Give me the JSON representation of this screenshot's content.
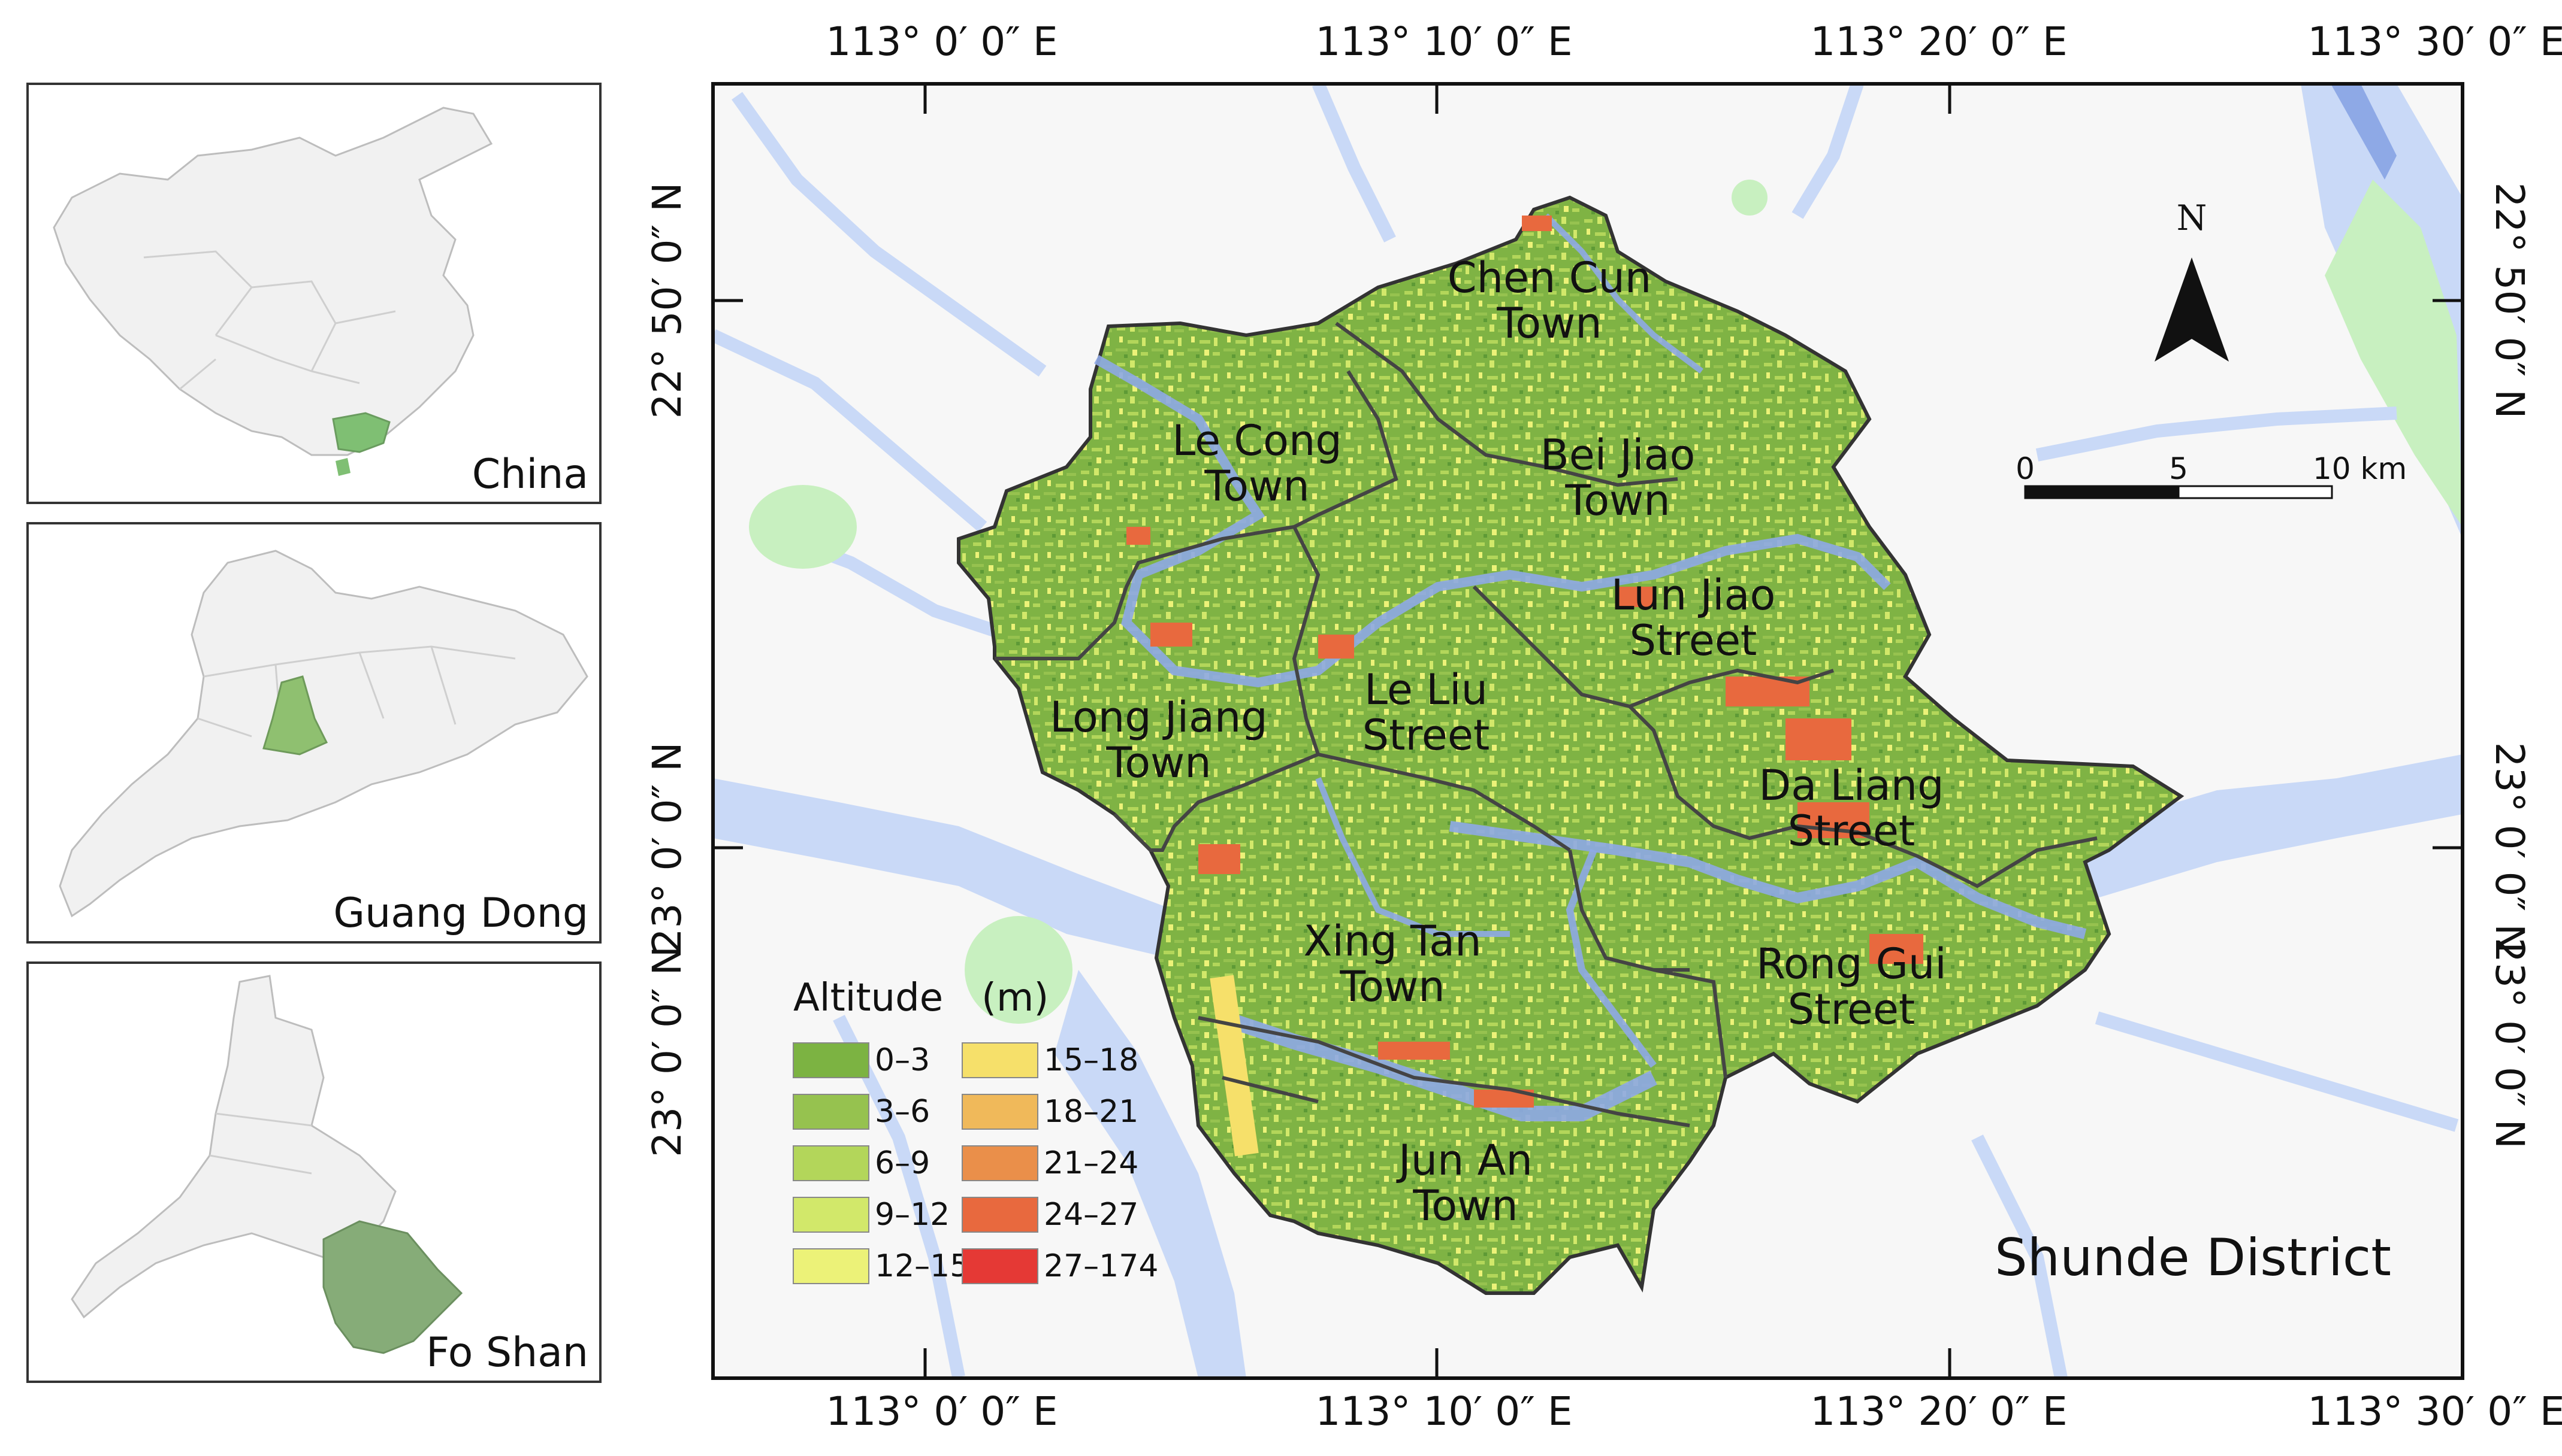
{
  "map": {
    "district_name": "Shunde District",
    "north_label": "N",
    "top_lon_labels": [
      "113° 0′ 0″ E",
      "113° 10′ 0″ E",
      "113° 20′ 0″ E",
      "113° 30′ 0″ E"
    ],
    "bottom_lon_labels": [
      "113° 0′ 0″ E",
      "113° 10′ 0″ E",
      "113° 20′ 0″ E",
      "113° 30′ 0″ E"
    ],
    "left_lat_labels": [
      "22° 50′ 0″ N",
      "23° 0′ 0″ N",
      "23° 0′ 0″ N"
    ],
    "right_lat_labels": [
      "22° 50′ 0″ N",
      "23° 0′ 0″ N",
      "23° 0′ 0″ N"
    ],
    "scale_bar": {
      "labels": [
        "0",
        "5",
        "10 km"
      ]
    },
    "colors": {
      "river": "#c9d9f7",
      "river_main": "#8ea9e6",
      "land": "#f7f7f7",
      "vegetation": "#c8f0c0",
      "boundary": "#444444"
    }
  },
  "regions": [
    {
      "line1": "Chen Cun",
      "line2": "Town"
    },
    {
      "line1": "Le Cong",
      "line2": "Town"
    },
    {
      "line1": "Bei Jiao",
      "line2": "Town"
    },
    {
      "line1": "Lun Jiao",
      "line2": "Street"
    },
    {
      "line1": "Le Liu",
      "line2": "Street"
    },
    {
      "line1": "Long Jiang",
      "line2": "Town"
    },
    {
      "line1": "Da Liang",
      "line2": "Street"
    },
    {
      "line1": "Xing Tan",
      "line2": "Town"
    },
    {
      "line1": "Rong Gui",
      "line2": "Street"
    },
    {
      "line1": "Jun An",
      "line2": "Town"
    }
  ],
  "legend": {
    "title": "Altitude　(m)",
    "items": [
      {
        "label": "0–3",
        "color": "#7cb342"
      },
      {
        "label": "3–6",
        "color": "#96c24f"
      },
      {
        "label": "6–9",
        "color": "#b3d65a"
      },
      {
        "label": "9–12",
        "color": "#d2e86a"
      },
      {
        "label": "12–15",
        "color": "#ecf278"
      },
      {
        "label": "15–18",
        "color": "#f6e06a"
      },
      {
        "label": "18–21",
        "color": "#f0b95a"
      },
      {
        "label": "21–24",
        "color": "#ea8f4a"
      },
      {
        "label": "24–27",
        "color": "#e8693e"
      },
      {
        "label": "27–174",
        "color": "#e53935"
      }
    ]
  },
  "insets": [
    {
      "label": "China",
      "highlight": "#7fbf73"
    },
    {
      "label": "Guang Dong",
      "highlight": "#8fc070"
    },
    {
      "label": "Fo Shan",
      "highlight": "#86ac78"
    }
  ]
}
